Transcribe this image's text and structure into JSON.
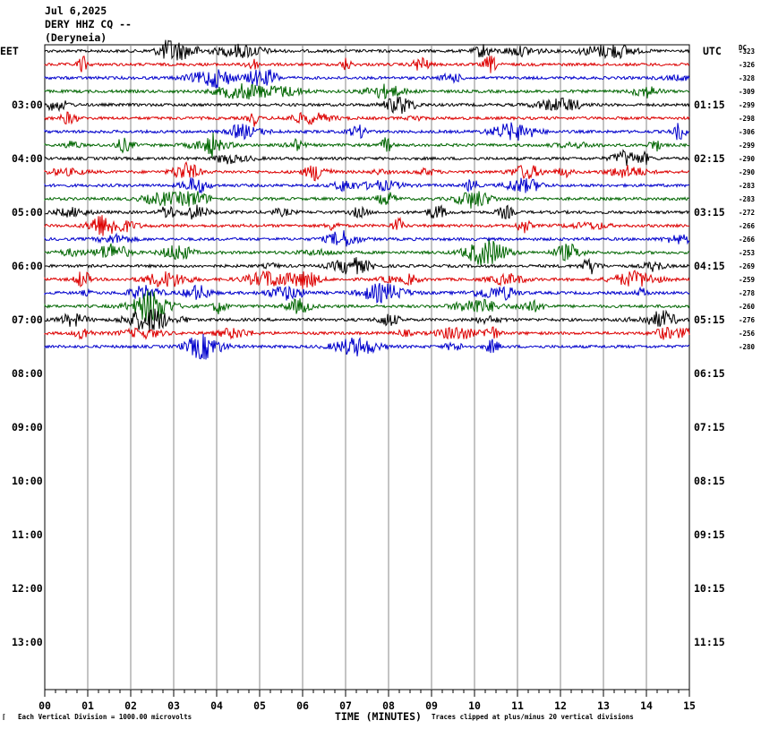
{
  "header": {
    "date": "Jul 6,2025",
    "station": "DERY HHZ CQ --",
    "place": "(Deryneia)"
  },
  "left_zone": "EET",
  "right_zone": "UTC",
  "dc_label": "DC",
  "footer": {
    "x_axis_label": "TIME (MINUTES)",
    "scale_note": "Each Vertical Division = 1000.00 microvolts",
    "clip_note": "Traces clipped at plus/minus 20 vertical divisions",
    "corner_mark": "⌈"
  },
  "colors": {
    "black": "#000000",
    "red": "#dd0000",
    "blue": "#0000cc",
    "green": "#006600",
    "grid": "#888888",
    "background": "#ffffff"
  },
  "chart_data": {
    "type": "line",
    "title": "DERY HHZ CQ -- (Deryneia) Jul 6,2025",
    "xlabel": "TIME (MINUTES)",
    "ylabel": "",
    "x_ticks": [
      "00",
      "01",
      "02",
      "03",
      "04",
      "05",
      "06",
      "07",
      "08",
      "09",
      "10",
      "11",
      "12",
      "13",
      "14",
      "15"
    ],
    "xlim": [
      0,
      15
    ],
    "left_hour_labels": [
      "03:00",
      "04:00",
      "05:00",
      "06:00",
      "07:00",
      "08:00",
      "09:00",
      "10:00",
      "11:00",
      "12:00",
      "13:00"
    ],
    "right_hour_labels": [
      "01:15",
      "02:15",
      "03:15",
      "04:15",
      "05:15",
      "06:15",
      "07:15",
      "08:15",
      "09:15",
      "10:15",
      "11:15"
    ],
    "trace_color_cycle": [
      "black",
      "red",
      "blue",
      "green"
    ],
    "trace_count": 23,
    "dc_offsets": [
      -323,
      -326,
      -328,
      -309,
      -299,
      -298,
      -306,
      -299,
      -290,
      -290,
      -283,
      -283,
      -272,
      -266,
      -266,
      -253,
      -269,
      -259,
      -278,
      -260,
      -276,
      -256,
      -280
    ],
    "grid": true
  }
}
